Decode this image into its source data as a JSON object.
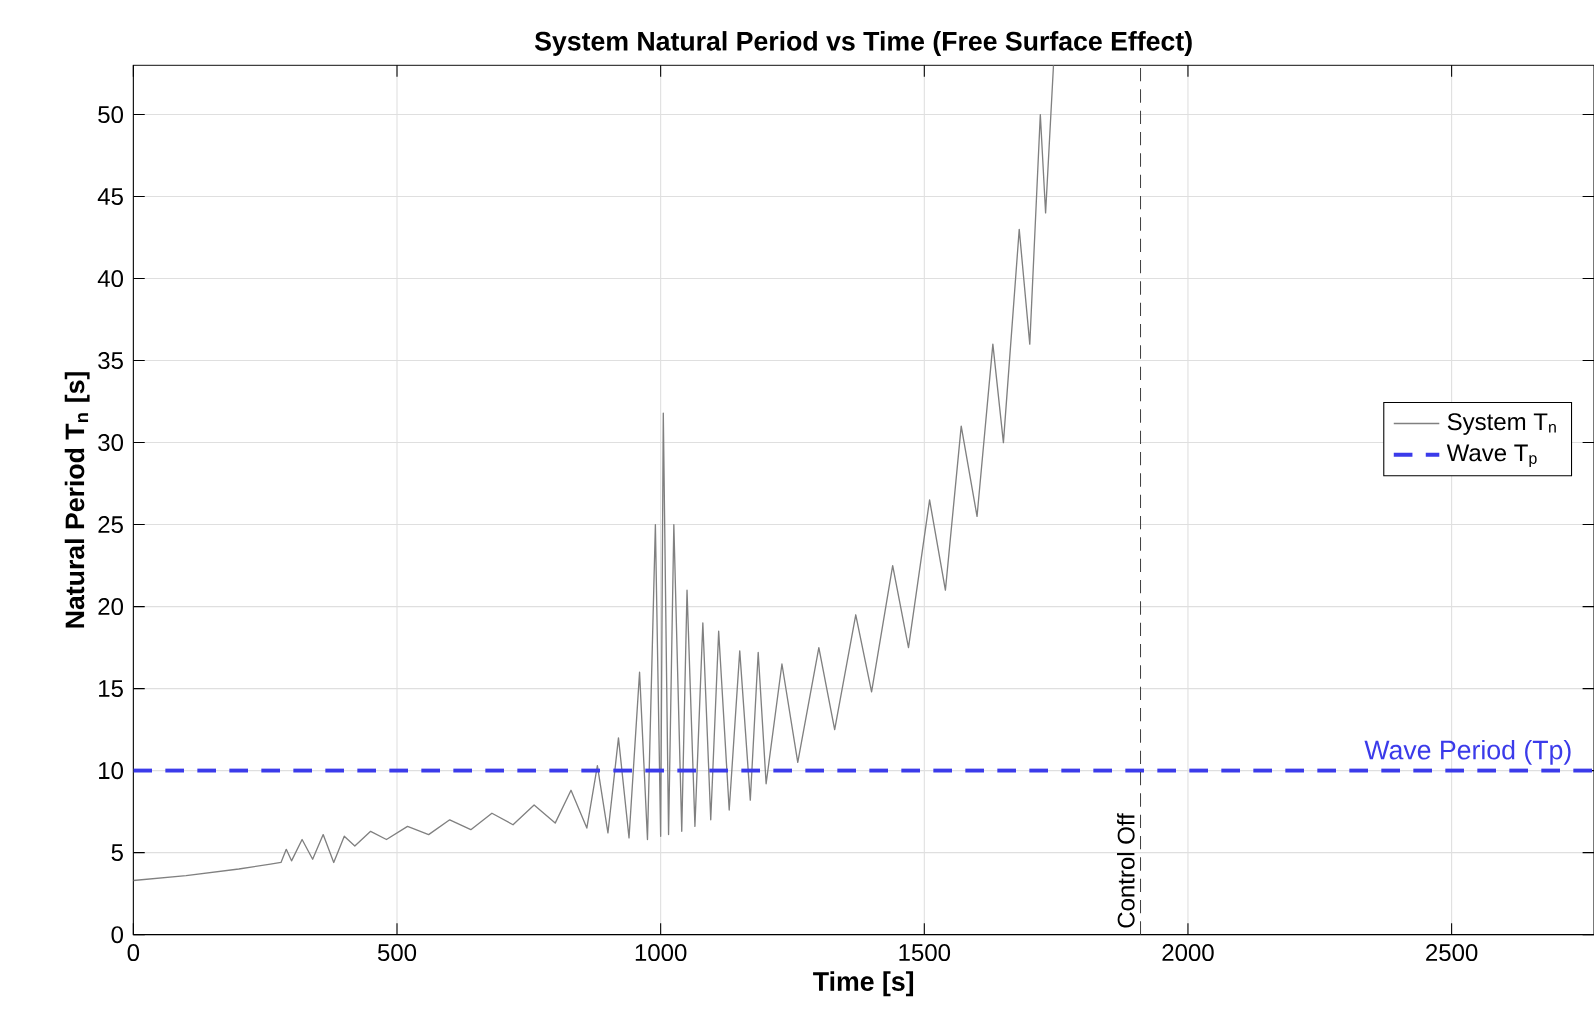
{
  "chart_data": {
    "type": "line",
    "title": "System Natural Period vs Time (Free Surface Effect)",
    "xlabel": "Time [s]",
    "ylabel": "Natural Period T$_{n}$ [s]",
    "xlim": [
      0,
      2770
    ],
    "ylim": [
      0,
      53
    ],
    "xticks": [
      0,
      500,
      1000,
      1500,
      2000,
      2500
    ],
    "yticks": [
      0,
      5,
      10,
      15,
      20,
      25,
      30,
      35,
      40,
      45,
      50
    ],
    "grid": true,
    "legend": "right",
    "marker": "none",
    "series": [
      {
        "name": "System T$_{n}$",
        "color": "#808080",
        "line_style": "solid",
        "x": [
          0,
          100,
          200,
          260,
          280,
          290,
          300,
          320,
          340,
          360,
          380,
          400,
          420,
          450,
          480,
          520,
          560,
          600,
          640,
          680,
          720,
          760,
          800,
          830,
          860,
          880,
          900,
          920,
          940,
          960,
          975,
          990,
          1000,
          1005,
          1015,
          1025,
          1040,
          1050,
          1065,
          1080,
          1095,
          1110,
          1130,
          1150,
          1170,
          1185,
          1200,
          1230,
          1260,
          1300,
          1330,
          1370,
          1400,
          1440,
          1470,
          1510,
          1540,
          1570,
          1600,
          1630,
          1650,
          1680,
          1700,
          1720,
          1730,
          1745
        ],
        "values": [
          3.3,
          3.6,
          4.0,
          4.3,
          4.4,
          5.2,
          4.5,
          5.8,
          4.6,
          6.1,
          4.4,
          6.0,
          5.4,
          6.3,
          5.8,
          6.6,
          6.1,
          7.0,
          6.4,
          7.4,
          6.7,
          7.9,
          6.8,
          8.8,
          6.5,
          10.3,
          6.2,
          12,
          5.9,
          16,
          5.8,
          25,
          6.0,
          31.8,
          6.1,
          25,
          6.3,
          21,
          6.6,
          19,
          7.0,
          18.5,
          7.6,
          17.3,
          8.2,
          17.2,
          9.2,
          16.5,
          10.5,
          17.5,
          12.5,
          19.5,
          14.8,
          22.5,
          17.5,
          26.5,
          21,
          31,
          25.5,
          36,
          30,
          43,
          36,
          50,
          44,
          53
        ]
      },
      {
        "name": "Wave T$_{p}$",
        "color": "#3b3bea",
        "line_style": "dashed",
        "x": [
          0,
          2770
        ],
        "values": [
          10,
          10
        ]
      }
    ],
    "ref_lines": [
      {
        "axis": "x",
        "value": 1910,
        "label": "Control Off",
        "color": "#444444",
        "line_style": "dashed"
      }
    ],
    "annotations": [
      {
        "text": "Wave Period (Tp)",
        "x": 2740,
        "y": 10
      }
    ]
  }
}
